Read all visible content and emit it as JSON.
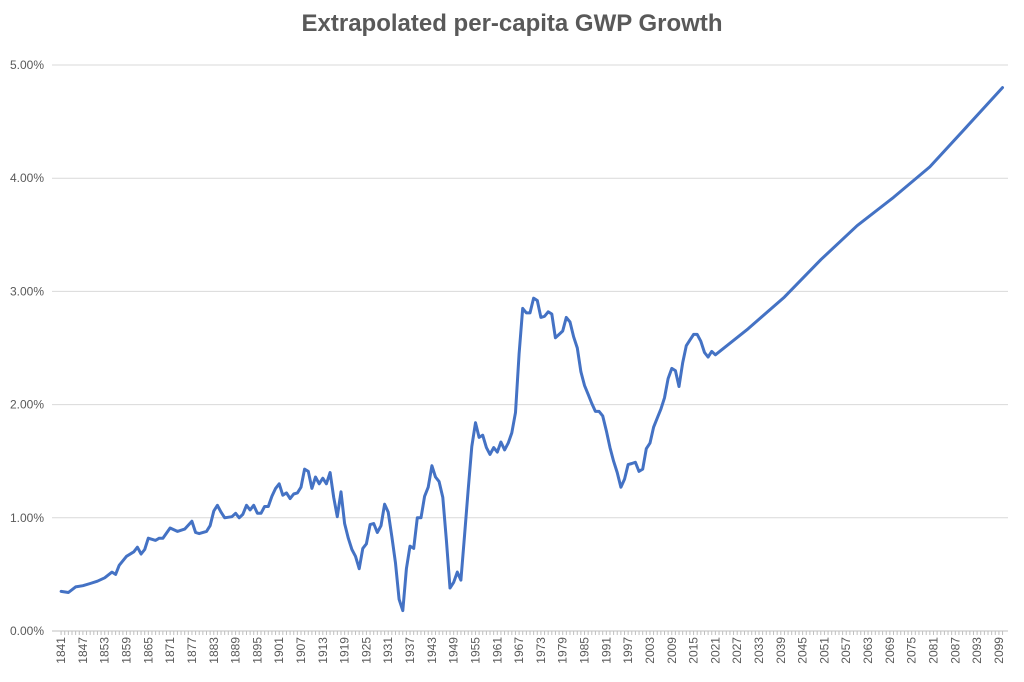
{
  "chart_data": {
    "type": "line",
    "title": "Extrapolated per-capita GWP Growth",
    "xlabel": "",
    "ylabel": "",
    "ylim": [
      0,
      0.05
    ],
    "y_ticks": [
      0,
      0.01,
      0.02,
      0.03,
      0.04,
      0.05
    ],
    "y_tick_labels": [
      "0.00%",
      "1.00%",
      "2.00%",
      "3.00%",
      "4.00%",
      "5.00%"
    ],
    "xlim": [
      1841,
      2100
    ],
    "x_ticks": [
      1841,
      1847,
      1853,
      1859,
      1865,
      1871,
      1877,
      1883,
      1889,
      1895,
      1901,
      1907,
      1913,
      1919,
      1925,
      1931,
      1937,
      1943,
      1949,
      1955,
      1961,
      1967,
      1973,
      1979,
      1985,
      1991,
      1997,
      2003,
      2009,
      2015,
      2021,
      2027,
      2033,
      2039,
      2045,
      2051,
      2057,
      2063,
      2069,
      2075,
      2081,
      2087,
      2093,
      2099
    ],
    "grid": "horizontal",
    "line_color": "#4472C4",
    "series": [
      {
        "points": [
          [
            1841,
            0.0035
          ],
          [
            1843,
            0.0034
          ],
          [
            1845,
            0.0039
          ],
          [
            1847,
            0.004
          ],
          [
            1849,
            0.0042
          ],
          [
            1851,
            0.0044
          ],
          [
            1853,
            0.0047
          ],
          [
            1855,
            0.0052
          ],
          [
            1856,
            0.005
          ],
          [
            1857,
            0.0058
          ],
          [
            1859,
            0.0066
          ],
          [
            1861,
            0.007
          ],
          [
            1862,
            0.0074
          ],
          [
            1863,
            0.0068
          ],
          [
            1864,
            0.0072
          ],
          [
            1865,
            0.0082
          ],
          [
            1867,
            0.008
          ],
          [
            1868,
            0.0082
          ],
          [
            1869,
            0.0082
          ],
          [
            1871,
            0.0091
          ],
          [
            1873,
            0.0088
          ],
          [
            1875,
            0.009
          ],
          [
            1877,
            0.0097
          ],
          [
            1878,
            0.0087
          ],
          [
            1879,
            0.0086
          ],
          [
            1881,
            0.0088
          ],
          [
            1882,
            0.0093
          ],
          [
            1883,
            0.0106
          ],
          [
            1884,
            0.0111
          ],
          [
            1885,
            0.0105
          ],
          [
            1886,
            0.01
          ],
          [
            1888,
            0.0101
          ],
          [
            1889,
            0.0104
          ],
          [
            1890,
            0.01
          ],
          [
            1891,
            0.0103
          ],
          [
            1892,
            0.0111
          ],
          [
            1893,
            0.0107
          ],
          [
            1894,
            0.0111
          ],
          [
            1895,
            0.0104
          ],
          [
            1896,
            0.0104
          ],
          [
            1897,
            0.011
          ],
          [
            1898,
            0.011
          ],
          [
            1899,
            0.0119
          ],
          [
            1900,
            0.0126
          ],
          [
            1901,
            0.013
          ],
          [
            1902,
            0.012
          ],
          [
            1903,
            0.0122
          ],
          [
            1904,
            0.0117
          ],
          [
            1905,
            0.0121
          ],
          [
            1906,
            0.0122
          ],
          [
            1907,
            0.0127
          ],
          [
            1908,
            0.0143
          ],
          [
            1909,
            0.0141
          ],
          [
            1910,
            0.0126
          ],
          [
            1911,
            0.0136
          ],
          [
            1912,
            0.013
          ],
          [
            1913,
            0.0135
          ],
          [
            1914,
            0.013
          ],
          [
            1915,
            0.014
          ],
          [
            1916,
            0.0118
          ],
          [
            1917,
            0.0101
          ],
          [
            1918,
            0.0123
          ],
          [
            1919,
            0.0095
          ],
          [
            1920,
            0.0082
          ],
          [
            1921,
            0.0072
          ],
          [
            1922,
            0.0066
          ],
          [
            1923,
            0.0055
          ],
          [
            1924,
            0.0073
          ],
          [
            1925,
            0.0077
          ],
          [
            1926,
            0.0094
          ],
          [
            1927,
            0.0095
          ],
          [
            1928,
            0.0087
          ],
          [
            1929,
            0.0093
          ],
          [
            1930,
            0.0112
          ],
          [
            1931,
            0.0105
          ],
          [
            1932,
            0.0083
          ],
          [
            1933,
            0.006
          ],
          [
            1934,
            0.0028
          ],
          [
            1935,
            0.0018
          ],
          [
            1936,
            0.0055
          ],
          [
            1937,
            0.0075
          ],
          [
            1938,
            0.0073
          ],
          [
            1939,
            0.01
          ],
          [
            1940,
            0.01
          ],
          [
            1941,
            0.0119
          ],
          [
            1942,
            0.0127
          ],
          [
            1943,
            0.0146
          ],
          [
            1944,
            0.0136
          ],
          [
            1945,
            0.0132
          ],
          [
            1946,
            0.0118
          ],
          [
            1947,
            0.008
          ],
          [
            1948,
            0.0038
          ],
          [
            1949,
            0.0043
          ],
          [
            1950,
            0.0052
          ],
          [
            1951,
            0.0045
          ],
          [
            1952,
            0.0085
          ],
          [
            1953,
            0.0125
          ],
          [
            1954,
            0.0163
          ],
          [
            1955,
            0.0184
          ],
          [
            1956,
            0.0171
          ],
          [
            1957,
            0.0173
          ],
          [
            1958,
            0.0162
          ],
          [
            1959,
            0.0156
          ],
          [
            1960,
            0.0162
          ],
          [
            1961,
            0.0158
          ],
          [
            1962,
            0.0167
          ],
          [
            1963,
            0.016
          ],
          [
            1964,
            0.0166
          ],
          [
            1965,
            0.0175
          ],
          [
            1966,
            0.0193
          ],
          [
            1967,
            0.0245
          ],
          [
            1968,
            0.0285
          ],
          [
            1969,
            0.0281
          ],
          [
            1970,
            0.0281
          ],
          [
            1971,
            0.0294
          ],
          [
            1972,
            0.0292
          ],
          [
            1973,
            0.0277
          ],
          [
            1974,
            0.0278
          ],
          [
            1975,
            0.0282
          ],
          [
            1976,
            0.028
          ],
          [
            1977,
            0.0259
          ],
          [
            1978,
            0.0262
          ],
          [
            1979,
            0.0265
          ],
          [
            1980,
            0.0277
          ],
          [
            1981,
            0.0273
          ],
          [
            1982,
            0.026
          ],
          [
            1983,
            0.025
          ],
          [
            1984,
            0.0229
          ],
          [
            1985,
            0.0217
          ],
          [
            1986,
            0.0209
          ],
          [
            1987,
            0.0201
          ],
          [
            1988,
            0.0194
          ],
          [
            1989,
            0.0194
          ],
          [
            1990,
            0.019
          ],
          [
            1991,
            0.0177
          ],
          [
            1992,
            0.0162
          ],
          [
            1993,
            0.015
          ],
          [
            1994,
            0.014
          ],
          [
            1995,
            0.0127
          ],
          [
            1996,
            0.0134
          ],
          [
            1997,
            0.0147
          ],
          [
            1998,
            0.0148
          ],
          [
            1999,
            0.0149
          ],
          [
            2000,
            0.0141
          ],
          [
            2001,
            0.0143
          ],
          [
            2002,
            0.0161
          ],
          [
            2003,
            0.0166
          ],
          [
            2004,
            0.018
          ],
          [
            2005,
            0.0188
          ],
          [
            2006,
            0.0196
          ],
          [
            2007,
            0.0206
          ],
          [
            2008,
            0.0223
          ],
          [
            2009,
            0.0232
          ],
          [
            2010,
            0.023
          ],
          [
            2011,
            0.0216
          ],
          [
            2012,
            0.0237
          ],
          [
            2013,
            0.0252
          ],
          [
            2014,
            0.0257
          ],
          [
            2015,
            0.0262
          ],
          [
            2016,
            0.0262
          ],
          [
            2017,
            0.0256
          ],
          [
            2018,
            0.0246
          ],
          [
            2019,
            0.0242
          ],
          [
            2020,
            0.0247
          ],
          [
            2021,
            0.0244
          ],
          [
            2030,
            0.0267
          ],
          [
            2040,
            0.0295
          ],
          [
            2050,
            0.0328
          ],
          [
            2060,
            0.0358
          ],
          [
            2070,
            0.0383
          ],
          [
            2080,
            0.041
          ],
          [
            2090,
            0.0445
          ],
          [
            2100,
            0.048
          ]
        ]
      }
    ]
  }
}
